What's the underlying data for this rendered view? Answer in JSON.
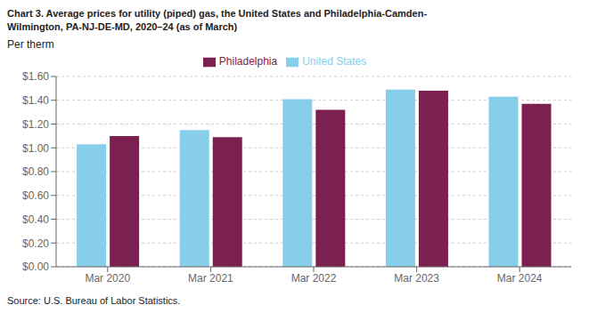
{
  "chart_data": {
    "type": "bar",
    "title": "Chart 3. Average prices for utility (piped) gas, the United States and Philadelphia-Camden-\nWilmington, PA-NJ-DE-MD, 2020–24 (as of March)",
    "ylabel": "Per therm",
    "annotations": [
      "Source: U.S. Bureau of Labor Statistics."
    ],
    "categories": [
      "Mar 2020",
      "Mar 2021",
      "Mar 2022",
      "Mar 2023",
      "Mar 2024"
    ],
    "series": [
      {
        "name": "United States",
        "color": "#87CEEB",
        "values": [
          1.03,
          1.15,
          1.41,
          1.49,
          1.43
        ]
      },
      {
        "name": "Philadelphia",
        "color": "#7B2051",
        "values": [
          1.1,
          1.09,
          1.32,
          1.48,
          1.37
        ]
      }
    ],
    "ylim": [
      0.0,
      1.6
    ],
    "yticks": [
      {
        "value": 0.0,
        "label": "$0.00"
      },
      {
        "value": 0.2,
        "label": "$0.20"
      },
      {
        "value": 0.4,
        "label": "$0.40"
      },
      {
        "value": 0.6,
        "label": "$0.60"
      },
      {
        "value": 0.8,
        "label": "$0.80"
      },
      {
        "value": 1.0,
        "label": "$1.00"
      },
      {
        "value": 1.2,
        "label": "$1.20"
      },
      {
        "value": 1.4,
        "label": "$1.40"
      },
      {
        "value": 1.6,
        "label": "$1.60"
      }
    ],
    "grid": true,
    "legend": "top"
  }
}
